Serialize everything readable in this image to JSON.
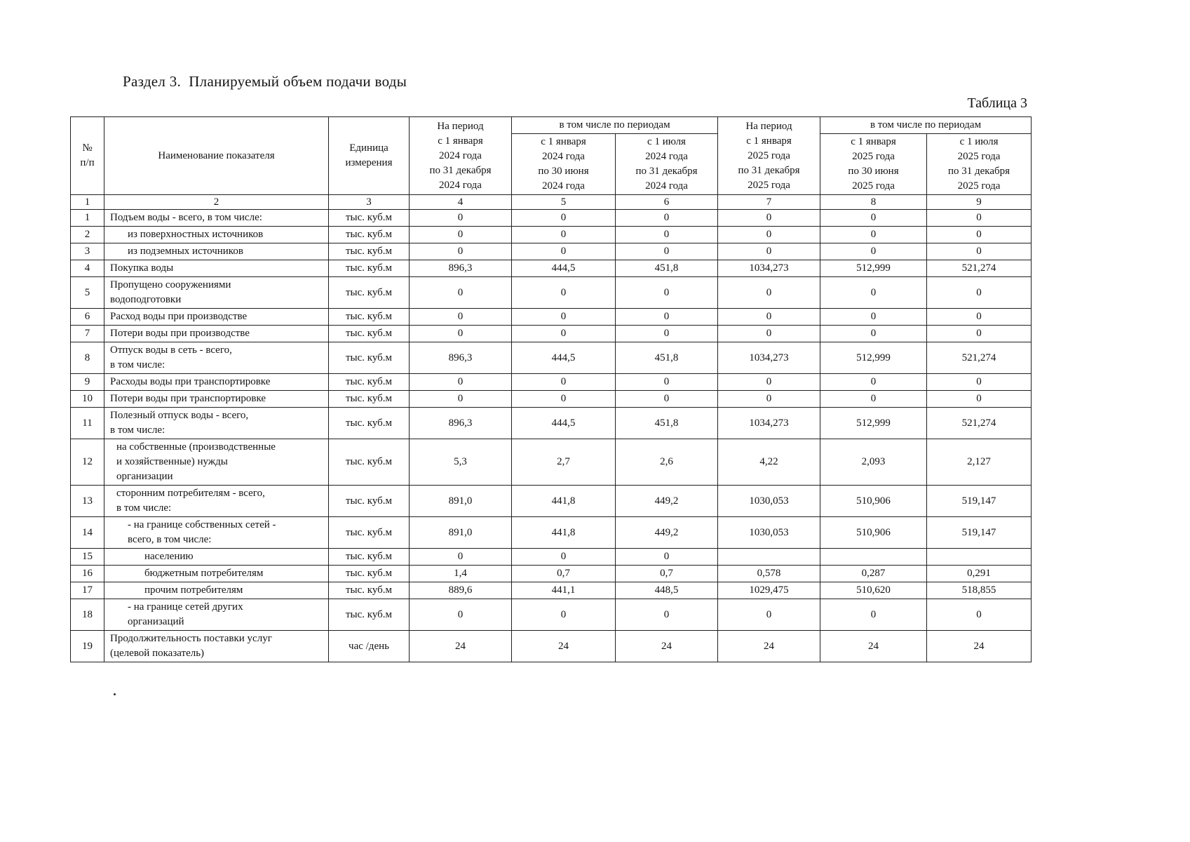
{
  "page": {
    "section_title": "Раздел 3.  Планируемый объем подачи воды",
    "table_caption": "Таблица 3"
  },
  "table": {
    "header": {
      "num": "№\nп/п",
      "name": "Наименование показателя",
      "unit": "Единица\nизмерения",
      "period_2024": "На период\nс 1 января\n2024 года\nпо 31 декабря\n2024 года",
      "including_2024": "в том числе по периодам",
      "half1_2024": "с 1 января\n2024 года\nпо 30 июня\n2024 года",
      "half2_2024": "с 1 июля\n2024 года\nпо 31 декабря\n2024 года",
      "period_2025": "На период\nс 1 января\n2025 года\nпо 31 декабря\n2025 года",
      "including_2025": "в том числе по периодам",
      "half1_2025": "с 1 января\n2025 года\nпо 30 июня\n2025 года",
      "half2_2025": "с 1 июля\n2025 года\nпо 31 декабря\n2025 года",
      "col_numbers": [
        "1",
        "2",
        "3",
        "4",
        "5",
        "6",
        "7",
        "8",
        "9"
      ]
    },
    "rows": [
      {
        "num": "1",
        "name": "Подъем воды - всего, в том числе:",
        "unit": "тыс. куб.м",
        "indent": 0,
        "values": [
          "0",
          "0",
          "0",
          "0",
          "0",
          "0"
        ]
      },
      {
        "num": "2",
        "name": "из поверхностных источников",
        "unit": "тыс. куб.м",
        "indent": 2,
        "values": [
          "0",
          "0",
          "0",
          "0",
          "0",
          "0"
        ]
      },
      {
        "num": "3",
        "name": "из подземных источников",
        "unit": "тыс. куб.м",
        "indent": 2,
        "values": [
          "0",
          "0",
          "0",
          "0",
          "0",
          "0"
        ]
      },
      {
        "num": "4",
        "name": "Покупка воды",
        "unit": "тыс. куб.м",
        "indent": 0,
        "values": [
          "896,3",
          "444,5",
          "451,8",
          "1034,273",
          "512,999",
          "521,274"
        ]
      },
      {
        "num": "5",
        "name": "Пропущено сооружениями\nводоподготовки",
        "unit": "тыс. куб.м",
        "indent": 0,
        "values": [
          "0",
          "0",
          "0",
          "0",
          "0",
          "0"
        ]
      },
      {
        "num": "6",
        "name": "Расход воды при производстве",
        "unit": "тыс. куб.м",
        "indent": 0,
        "values": [
          "0",
          "0",
          "0",
          "0",
          "0",
          "0"
        ]
      },
      {
        "num": "7",
        "name": "Потери воды при производстве",
        "unit": "тыс. куб.м",
        "indent": 0,
        "values": [
          "0",
          "0",
          "0",
          "0",
          "0",
          "0"
        ]
      },
      {
        "num": "8",
        "name": "Отпуск воды в сеть - всего,\nв том числе:",
        "unit": "тыс. куб.м",
        "indent": 0,
        "values": [
          "896,3",
          "444,5",
          "451,8",
          "1034,273",
          "512,999",
          "521,274"
        ]
      },
      {
        "num": "9",
        "name": "Расходы воды при транспортировке",
        "unit": "тыс. куб.м",
        "indent": 0,
        "values": [
          "0",
          "0",
          "0",
          "0",
          "0",
          "0"
        ]
      },
      {
        "num": "10",
        "name": "Потери воды при транспортировке",
        "unit": "тыс. куб.м",
        "indent": 0,
        "values": [
          "0",
          "0",
          "0",
          "0",
          "0",
          "0"
        ]
      },
      {
        "num": "11",
        "name": "Полезный отпуск воды - всего,\nв том числе:",
        "unit": "тыс. куб.м",
        "indent": 0,
        "values": [
          "896,3",
          "444,5",
          "451,8",
          "1034,273",
          "512,999",
          "521,274"
        ]
      },
      {
        "num": "12",
        "name": "на собственные (производственные\nи хозяйственные) нужды\nорганизации",
        "unit": "тыс. куб.м",
        "indent": 1,
        "values": [
          "5,3",
          "2,7",
          "2,6",
          "4,22",
          "2,093",
          "2,127"
        ]
      },
      {
        "num": "13",
        "name": "сторонним потребителям - всего,\nв том числе:",
        "unit": "тыс. куб.м",
        "indent": 1,
        "values": [
          "891,0",
          "441,8",
          "449,2",
          "1030,053",
          "510,906",
          "519,147"
        ]
      },
      {
        "num": "14",
        "name": "- на границе собственных сетей -\nвсего, в том числе:",
        "unit": "тыс. куб.м",
        "indent": 2,
        "values": [
          "891,0",
          "441,8",
          "449,2",
          "1030,053",
          "510,906",
          "519,147"
        ]
      },
      {
        "num": "15",
        "name": "населению",
        "unit": "тыс. куб.м",
        "indent": 3,
        "values": [
          "0",
          "0",
          "0",
          "",
          "",
          ""
        ]
      },
      {
        "num": "16",
        "name": "бюджетным потребителям",
        "unit": "тыс. куб.м",
        "indent": 3,
        "values": [
          "1,4",
          "0,7",
          "0,7",
          "0,578",
          "0,287",
          "0,291"
        ]
      },
      {
        "num": "17",
        "name": "прочим потребителям",
        "unit": "тыс. куб.м",
        "indent": 3,
        "values": [
          "889,6",
          "441,1",
          "448,5",
          "1029,475",
          "510,620",
          "518,855"
        ]
      },
      {
        "num": "18",
        "name": "- на границе сетей других\nорганизаций",
        "unit": "тыс. куб.м",
        "indent": 2,
        "values": [
          "0",
          "0",
          "0",
          "0",
          "0",
          "0"
        ]
      },
      {
        "num": "19",
        "name": "Продолжительность поставки услуг\n(целевой показатель)",
        "unit": "час /день",
        "indent": 0,
        "values": [
          "24",
          "24",
          "24",
          "24",
          "24",
          "24"
        ]
      }
    ]
  }
}
